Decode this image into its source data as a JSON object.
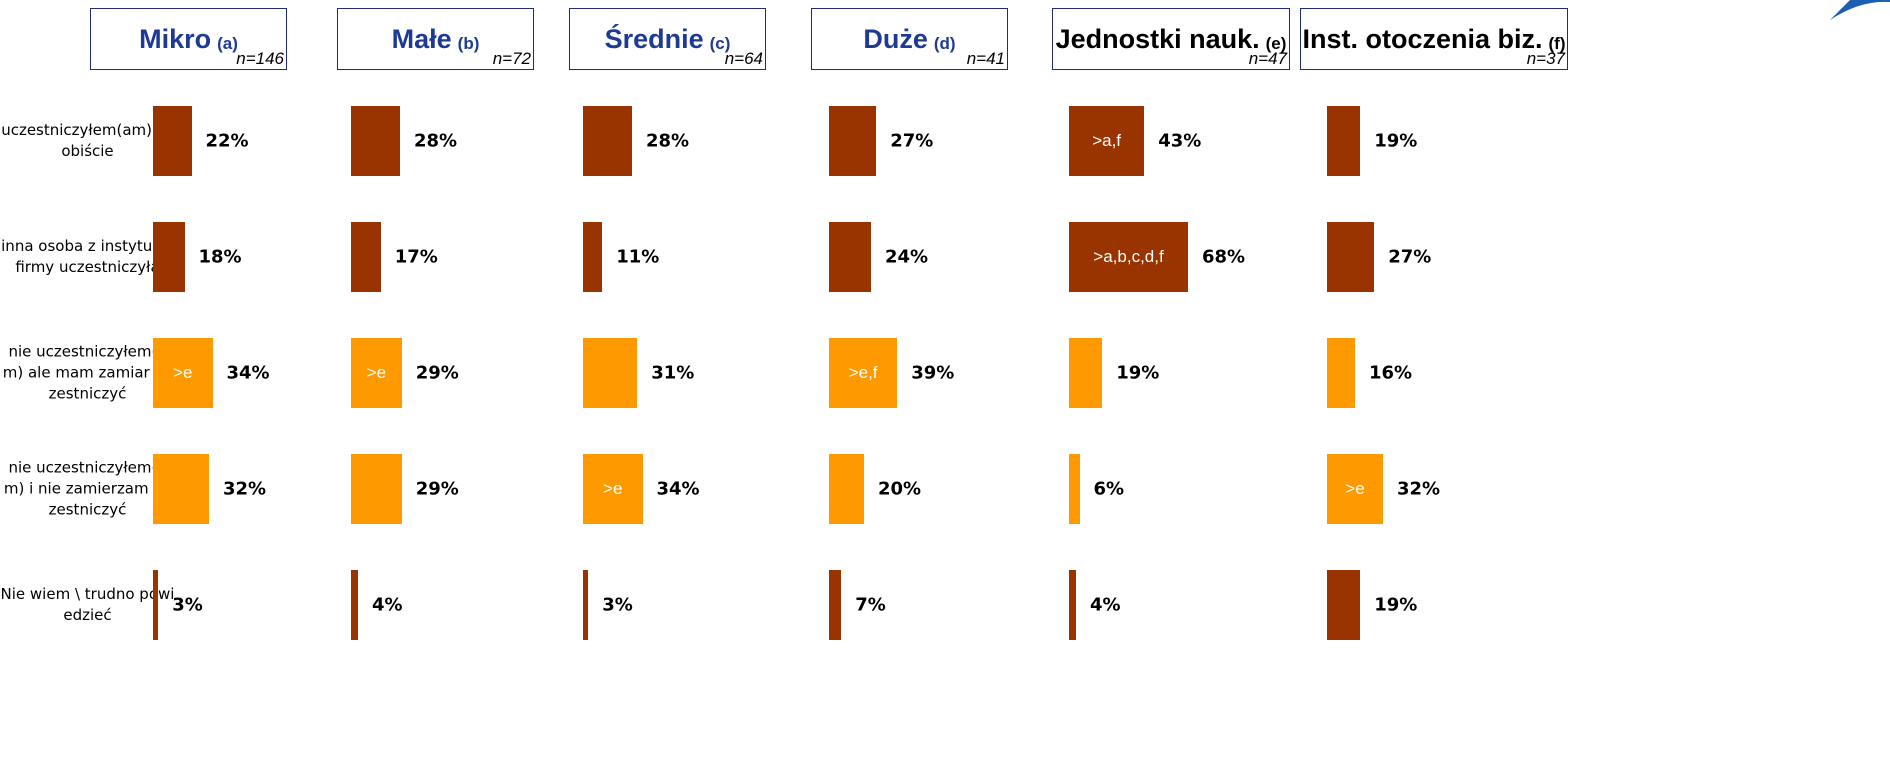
{
  "chart_data": [
    {
      "type": "bar",
      "title": "Mikro",
      "title_note": "(a)",
      "subtitle": "n=146",
      "title_color": "#1f3a93",
      "categories": [
        "uczestniczyłem(am) osobiście",
        "inna osoba z instytucji\\ firmy uczestniczyła",
        "nie uczestniczyłem(am) ale mam zamiar uczestniczyć",
        "nie uczestniczyłem(am) i nie zamierzam uczestniczyć",
        "Nie wiem \\ trudno powiedzieć"
      ],
      "values": [
        22,
        18,
        34,
        32,
        3
      ],
      "value_labels": [
        "22%",
        "18%",
        "34%",
        "32%",
        "3%"
      ],
      "annotations": [
        null,
        null,
        ">e",
        null,
        null
      ],
      "colors": [
        "#993300",
        "#993300",
        "#ff9900",
        "#ff9900",
        "#993300"
      ]
    },
    {
      "type": "bar",
      "title": "Małe",
      "title_note": "(b)",
      "subtitle": "n=72",
      "title_color": "#1f3a93",
      "values": [
        28,
        17,
        29,
        29,
        4
      ],
      "value_labels": [
        "28%",
        "17%",
        "29%",
        "29%",
        "4%"
      ],
      "annotations": [
        null,
        null,
        ">e",
        null,
        null
      ],
      "colors": [
        "#993300",
        "#993300",
        "#ff9900",
        "#ff9900",
        "#993300"
      ]
    },
    {
      "type": "bar",
      "title": "Średnie",
      "title_note": "(c)",
      "subtitle": "n=64",
      "title_color": "#1f3a93",
      "values": [
        28,
        11,
        31,
        34,
        3
      ],
      "value_labels": [
        "28%",
        "11%",
        "31%",
        "34%",
        "3%"
      ],
      "annotations": [
        null,
        null,
        null,
        ">e",
        null
      ],
      "colors": [
        "#993300",
        "#993300",
        "#ff9900",
        "#ff9900",
        "#993300"
      ]
    },
    {
      "type": "bar",
      "title": "Duże",
      "title_note": "(d)",
      "subtitle": "n=41",
      "title_color": "#1f3a93",
      "values": [
        27,
        24,
        39,
        20,
        7
      ],
      "value_labels": [
        "27%",
        "24%",
        "39%",
        "20%",
        "7%"
      ],
      "annotations": [
        null,
        null,
        ">e,f",
        null,
        null
      ],
      "colors": [
        "#993300",
        "#993300",
        "#ff9900",
        "#ff9900",
        "#993300"
      ]
    },
    {
      "type": "bar",
      "title": "Jednostki nauk.",
      "title_note": "(e)",
      "subtitle": "n=47",
      "title_color": "#000000",
      "values": [
        43,
        68,
        19,
        6,
        4
      ],
      "value_labels": [
        "43%",
        "68%",
        "19%",
        "6%",
        "4%"
      ],
      "annotations": [
        ">a,f",
        ">a,b,c,d,f",
        null,
        null,
        null
      ],
      "colors": [
        "#993300",
        "#993300",
        "#ff9900",
        "#ff9900",
        "#993300"
      ]
    },
    {
      "type": "bar",
      "title": "Inst. otoczenia biz.",
      "title_note": "(f)",
      "subtitle": "n=37",
      "title_color": "#000000",
      "values": [
        19,
        27,
        16,
        32,
        19
      ],
      "value_labels": [
        "19%",
        "27%",
        "16%",
        "32%",
        "19%"
      ],
      "annotations": [
        null,
        null,
        null,
        ">e",
        null
      ],
      "colors": [
        "#993300",
        "#993300",
        "#ff9900",
        "#ff9900",
        "#993300"
      ]
    }
  ]
}
